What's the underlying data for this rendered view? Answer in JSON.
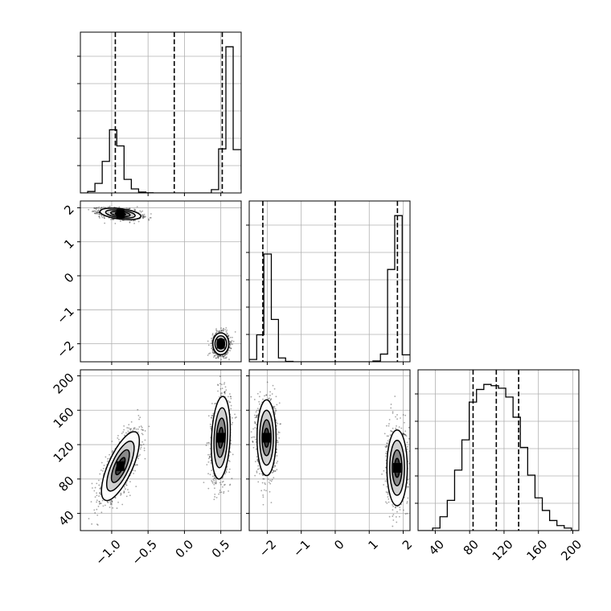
{
  "chart_data": {
    "type": "corner",
    "parameters": [
      {
        "tick_values": [
          -1.0,
          -0.5,
          0.0,
          0.5
        ],
        "tick_labels": [
          "−1.0",
          "−0.5",
          "0.0",
          "0.5"
        ],
        "range": [
          -1.43,
          0.78
        ],
        "quantiles": [
          -0.95,
          -0.14,
          0.52
        ]
      },
      {
        "tick_values": [
          -2,
          -1,
          0,
          1,
          2
        ],
        "tick_labels": [
          "−2",
          "−1",
          "0",
          "1",
          "2"
        ],
        "range": [
          -2.53,
          2.2
        ],
        "quantiles": [
          -2.13,
          0.0,
          1.83
        ]
      },
      {
        "tick_values": [
          40,
          80,
          120,
          160,
          200
        ],
        "tick_labels": [
          "40",
          "80",
          "120",
          "160",
          "200"
        ],
        "range": [
          20,
          207
        ],
        "quantiles": [
          84,
          111,
          137
        ]
      }
    ],
    "histograms": [
      {
        "parameter": 0,
        "bin_edges": [
          -1.43,
          -1.33,
          -1.23,
          -1.13,
          -1.03,
          -0.93,
          -0.83,
          -0.73,
          -0.63,
          -0.53,
          -0.43,
          -0.33,
          -0.23,
          -0.13,
          -0.03,
          0.07,
          0.17,
          0.27,
          0.37,
          0.47,
          0.57,
          0.67,
          0.78
        ],
        "counts": [
          0,
          20,
          130,
          430,
          860,
          640,
          185,
          55,
          12,
          3,
          0,
          0,
          0,
          0,
          0,
          0,
          0,
          0,
          45,
          600,
          1990,
          590,
          45
        ]
      },
      {
        "parameter": 1,
        "bin_edges": [
          -2.53,
          -2.31,
          -2.1,
          -1.88,
          -1.67,
          -1.46,
          -1.24,
          -1.03,
          -0.81,
          -0.6,
          -0.39,
          -0.17,
          0.04,
          0.26,
          0.47,
          0.68,
          0.9,
          1.11,
          1.33,
          1.54,
          1.75,
          1.97,
          2.2
        ],
        "counts": [
          30,
          350,
          1400,
          550,
          50,
          5,
          0,
          0,
          0,
          0,
          0,
          0,
          0,
          0,
          0,
          0,
          0,
          10,
          100,
          1200,
          1900,
          90
        ]
      },
      {
        "parameter": 2,
        "bin_edges": [
          20,
          28.5,
          37,
          45.5,
          54,
          62.5,
          71,
          79.5,
          88,
          96.5,
          105,
          113.5,
          122,
          130.5,
          139,
          147.5,
          156,
          164.5,
          173,
          181.5,
          190,
          198.5,
          207
        ],
        "counts": [
          0,
          0,
          10,
          55,
          120,
          240,
          360,
          510,
          560,
          580,
          575,
          565,
          530,
          450,
          330,
          220,
          130,
          80,
          40,
          20,
          10,
          0
        ]
      }
    ],
    "blobs": [
      {
        "x": 0,
        "y": 1,
        "cx": -0.88,
        "cy": 1.82,
        "sx": 0.14,
        "sy": 0.085,
        "corr": -0.4,
        "n": 1200
      },
      {
        "x": 0,
        "y": 1,
        "cx": 0.5,
        "cy": -2.0,
        "sx": 0.055,
        "sy": 0.16,
        "corr": 0.0,
        "n": 1200
      },
      {
        "x": 0,
        "y": 2,
        "cx": -0.88,
        "cy": 95,
        "sx": 0.13,
        "sy": 20,
        "corr": 0.72,
        "n": 1100
      },
      {
        "x": 0,
        "y": 2,
        "cx": 0.5,
        "cy": 128,
        "sx": 0.065,
        "sy": 24,
        "corr": 0.2,
        "n": 1100
      },
      {
        "x": 1,
        "y": 2,
        "cx": -2.02,
        "cy": 128,
        "sx": 0.14,
        "sy": 22,
        "corr": 0.0,
        "n": 1100
      },
      {
        "x": 1,
        "y": 2,
        "cx": 1.82,
        "cy": 93,
        "sx": 0.15,
        "sy": 22,
        "corr": 0.0,
        "n": 1100
      }
    ],
    "grid": true,
    "title": "",
    "xlabel": "",
    "ylabel": ""
  }
}
